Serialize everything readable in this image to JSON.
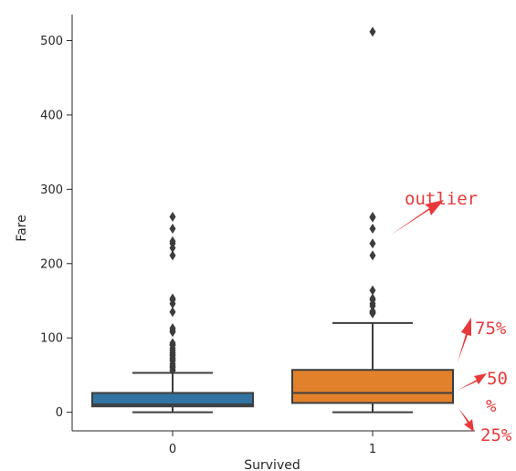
{
  "chart_data": {
    "type": "box",
    "xlabel": "Survived",
    "ylabel": "Fare",
    "ylim": [
      -25,
      535
    ],
    "y_ticks": [
      0,
      100,
      200,
      300,
      400,
      500
    ],
    "categories": [
      "0",
      "1"
    ],
    "series": [
      {
        "category": "0",
        "color": "#3274a1",
        "q1": 7.9,
        "median": 10.5,
        "q3": 26.0,
        "whisker_low": 0,
        "whisker_high": 53,
        "outliers": [
          56,
          57,
          60,
          62,
          65,
          69,
          71,
          73,
          76,
          78,
          80,
          83,
          86,
          90,
          91,
          93,
          108,
          110,
          113,
          135,
          146,
          151,
          153,
          211,
          221,
          227,
          230,
          247,
          263
        ]
      },
      {
        "category": "1",
        "color": "#e1812c",
        "q1": 12.5,
        "median": 26.0,
        "q3": 57.0,
        "whisker_low": 0,
        "whisker_high": 120,
        "outliers": [
          133,
          134,
          135,
          136,
          143,
          146,
          151,
          153,
          164,
          211,
          227,
          247,
          262,
          263,
          512
        ]
      }
    ],
    "annotations": [
      {
        "text": "outlier",
        "color": "#e8393a"
      },
      {
        "text": "75%",
        "color": "#e8393a"
      },
      {
        "text": "50",
        "color": "#e8393a"
      },
      {
        "text": "%",
        "color": "#e8393a"
      },
      {
        "text": "25%",
        "color": "#e8393a"
      }
    ]
  }
}
